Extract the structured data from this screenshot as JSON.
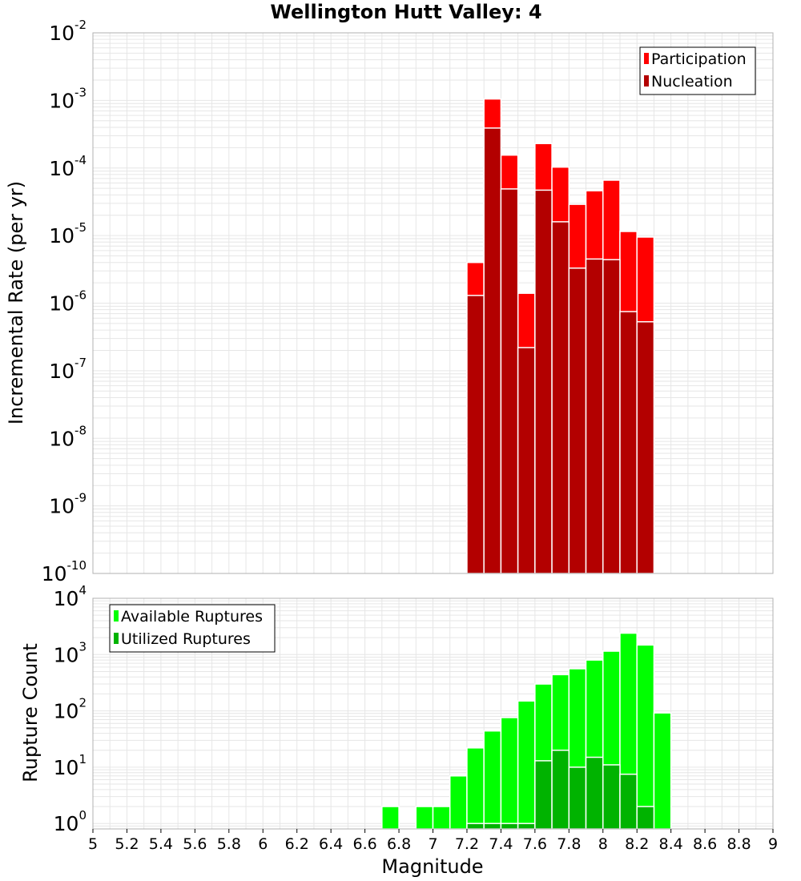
{
  "title": "Wellington Hutt Valley: 4",
  "xlabel": "Magnitude",
  "x_ticks": [
    "5",
    "5.2",
    "5.4",
    "5.6",
    "5.8",
    "6",
    "6.2",
    "6.4",
    "6.6",
    "6.8",
    "7",
    "7.2",
    "7.4",
    "7.6",
    "7.8",
    "8",
    "8.2",
    "8.4",
    "8.6",
    "8.8",
    "9"
  ],
  "chart_data": [
    {
      "type": "bar",
      "ylabel": "Incremental Rate (per yr)",
      "yscale": "log",
      "xlim": [
        5,
        9
      ],
      "ylim": [
        1e-10,
        0.01
      ],
      "y_ticks": [
        {
          "base": "10",
          "exp": "-2"
        },
        {
          "base": "10",
          "exp": "-3"
        },
        {
          "base": "10",
          "exp": "-4"
        },
        {
          "base": "10",
          "exp": "-5"
        },
        {
          "base": "10",
          "exp": "-6"
        },
        {
          "base": "10",
          "exp": "-7"
        },
        {
          "base": "10",
          "exp": "-8"
        },
        {
          "base": "10",
          "exp": "-9"
        },
        {
          "base": "10",
          "exp": "-10"
        }
      ],
      "legend_position": "top-right",
      "bin_width": 0.1,
      "x": [
        7.25,
        7.35,
        7.45,
        7.55,
        7.65,
        7.75,
        7.85,
        7.95,
        8.05,
        8.15,
        8.25
      ],
      "series": [
        {
          "name": "Participation",
          "color": "#ff0000",
          "values": [
            4e-06,
            0.00105,
            0.000155,
            1.4e-06,
            0.00023,
            0.000103,
            2.9e-05,
            4.6e-05,
            6.6e-05,
            1.15e-05,
            9.5e-06
          ]
        },
        {
          "name": "Nucleation",
          "color": "#b30000",
          "values": [
            1.3e-06,
            0.00039,
            4.9e-05,
            2.2e-07,
            4.7e-05,
            1.6e-05,
            3.3e-06,
            4.5e-06,
            4.4e-06,
            7.5e-07,
            5.3e-07
          ]
        }
      ]
    },
    {
      "type": "bar",
      "ylabel": "Rupture Count",
      "yscale": "log",
      "xlim": [
        5,
        9
      ],
      "ylim": [
        0.8,
        10000
      ],
      "y_ticks": [
        {
          "base": "10",
          "exp": "4"
        },
        {
          "base": "10",
          "exp": "3"
        },
        {
          "base": "10",
          "exp": "2"
        },
        {
          "base": "10",
          "exp": "1"
        },
        {
          "base": "10",
          "exp": "0"
        }
      ],
      "legend_position": "top-left",
      "bin_width": 0.1,
      "x": [
        6.75,
        6.95,
        7.05,
        7.15,
        7.25,
        7.35,
        7.45,
        7.55,
        7.65,
        7.75,
        7.85,
        7.95,
        8.05,
        8.15,
        8.25,
        8.35
      ],
      "series": [
        {
          "name": "Available Ruptures",
          "color": "#00ff00",
          "values": [
            2,
            2,
            2,
            7,
            22,
            44,
            76,
            150,
            300,
            440,
            560,
            800,
            1150,
            2400,
            1480,
            92
          ]
        },
        {
          "name": "Utilized Ruptures",
          "color": "#00b300",
          "values": [
            0,
            0,
            0,
            0,
            1,
            1,
            1,
            1,
            13,
            20,
            10,
            15,
            11,
            7.5,
            2,
            0
          ]
        }
      ]
    }
  ],
  "colors": {
    "grid": "#e6e6e6",
    "axis": "#b0b0b0",
    "bar_edge": "#ffffff"
  }
}
